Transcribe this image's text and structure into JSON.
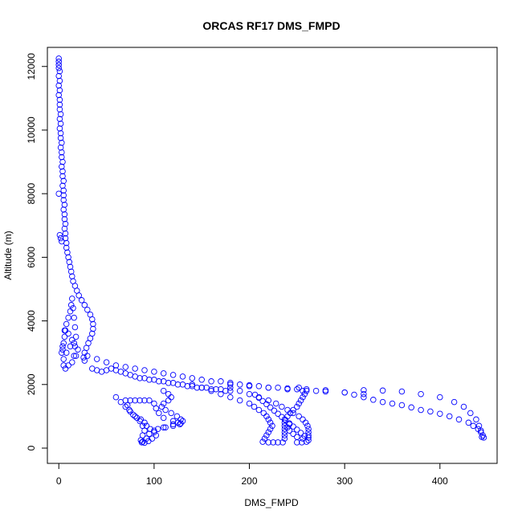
{
  "chart_data": {
    "type": "scatter",
    "title": "ORCAS RF17 DMS_FMPD",
    "xlabel": "DMS_FMPD",
    "ylabel": "Altitude (m)",
    "xlim": [
      -12,
      460
    ],
    "ylim": [
      -480,
      12600
    ],
    "x_ticks": [
      0,
      100,
      200,
      300,
      400
    ],
    "y_ticks": [
      0,
      2000,
      4000,
      6000,
      8000,
      10000,
      12000
    ],
    "grid": false,
    "marker": "open-circle",
    "color": "#0000ff",
    "series": [
      {
        "points": [
          [
            0,
            12250
          ],
          [
            0,
            12150
          ],
          [
            0,
            12050
          ],
          [
            0,
            11950
          ],
          [
            1,
            11850
          ],
          [
            0,
            11700
          ],
          [
            1,
            11550
          ],
          [
            0,
            11400
          ],
          [
            1,
            11250
          ],
          [
            0,
            11100
          ],
          [
            1,
            10950
          ],
          [
            1,
            10800
          ],
          [
            1,
            10650
          ],
          [
            2,
            10500
          ],
          [
            1,
            10350
          ],
          [
            2,
            10200
          ],
          [
            1,
            10050
          ],
          [
            2,
            9900
          ],
          [
            2,
            9750
          ],
          [
            3,
            9600
          ],
          [
            2,
            9450
          ],
          [
            3,
            9300
          ],
          [
            3,
            9150
          ],
          [
            4,
            9000
          ],
          [
            3,
            8850
          ],
          [
            4,
            8700
          ],
          [
            4,
            8550
          ],
          [
            5,
            8400
          ],
          [
            4,
            8250
          ],
          [
            5,
            8100
          ],
          [
            0,
            8000
          ],
          [
            5,
            7950
          ],
          [
            5,
            7800
          ],
          [
            6,
            7650
          ],
          [
            5,
            7500
          ],
          [
            6,
            7350
          ],
          [
            6,
            7200
          ],
          [
            7,
            7050
          ],
          [
            6,
            6900
          ],
          [
            7,
            6750
          ],
          [
            1,
            6700
          ],
          [
            2,
            6600
          ],
          [
            7,
            6600
          ],
          [
            8,
            6450
          ],
          [
            3,
            6500
          ],
          [
            8,
            6300
          ],
          [
            9,
            6150
          ],
          [
            10,
            6000
          ],
          [
            11,
            5850
          ],
          [
            12,
            5700
          ],
          [
            13,
            5550
          ],
          [
            14,
            5400
          ],
          [
            15,
            5250
          ],
          [
            17,
            5100
          ],
          [
            19,
            4950
          ],
          [
            21,
            4800
          ],
          [
            24,
            4650
          ],
          [
            27,
            4500
          ],
          [
            30,
            4350
          ],
          [
            33,
            4200
          ],
          [
            35,
            4050
          ],
          [
            36,
            3900
          ],
          [
            36,
            3750
          ],
          [
            35,
            3600
          ],
          [
            33,
            3450
          ],
          [
            31,
            3300
          ],
          [
            29,
            3150
          ],
          [
            27,
            3000
          ],
          [
            26,
            2850
          ],
          [
            27,
            2750
          ],
          [
            3,
            3000
          ],
          [
            4,
            3100
          ],
          [
            5,
            3300
          ],
          [
            6,
            3500
          ],
          [
            7,
            3700
          ],
          [
            8,
            3900
          ],
          [
            10,
            4100
          ],
          [
            12,
            4300
          ],
          [
            13,
            4500
          ],
          [
            14,
            4700
          ],
          [
            15,
            4400
          ],
          [
            16,
            4100
          ],
          [
            17,
            3800
          ],
          [
            18,
            3500
          ],
          [
            17,
            3200
          ],
          [
            16,
            2900
          ],
          [
            14,
            2700
          ],
          [
            10,
            2600
          ],
          [
            7,
            2500
          ],
          [
            5,
            2800
          ],
          [
            8,
            3000
          ],
          [
            12,
            3200
          ],
          [
            16,
            3300
          ],
          [
            20,
            3100
          ],
          [
            18,
            2900
          ],
          [
            14,
            3400
          ],
          [
            10,
            3600
          ],
          [
            6,
            3700
          ],
          [
            4,
            3200
          ],
          [
            5,
            2600
          ],
          [
            35,
            2500
          ],
          [
            40,
            2450
          ],
          [
            45,
            2400
          ],
          [
            50,
            2450
          ],
          [
            55,
            2500
          ],
          [
            60,
            2450
          ],
          [
            65,
            2400
          ],
          [
            70,
            2350
          ],
          [
            75,
            2300
          ],
          [
            80,
            2250
          ],
          [
            85,
            2200
          ],
          [
            90,
            2200
          ],
          [
            95,
            2150
          ],
          [
            100,
            2150
          ],
          [
            105,
            2100
          ],
          [
            110,
            2100
          ],
          [
            115,
            2050
          ],
          [
            120,
            2050
          ],
          [
            125,
            2000
          ],
          [
            130,
            2000
          ],
          [
            135,
            1950
          ],
          [
            140,
            1950
          ],
          [
            145,
            1900
          ],
          [
            150,
            1900
          ],
          [
            155,
            1900
          ],
          [
            160,
            1850
          ],
          [
            165,
            1850
          ],
          [
            170,
            1850
          ],
          [
            175,
            1800
          ],
          [
            180,
            1800
          ],
          [
            30,
            2900
          ],
          [
            40,
            2800
          ],
          [
            50,
            2700
          ],
          [
            60,
            2600
          ],
          [
            70,
            2550
          ],
          [
            80,
            2500
          ],
          [
            90,
            2450
          ],
          [
            100,
            2400
          ],
          [
            110,
            2350
          ],
          [
            120,
            2300
          ],
          [
            130,
            2250
          ],
          [
            140,
            2200
          ],
          [
            150,
            2150
          ],
          [
            160,
            2100
          ],
          [
            170,
            2100
          ],
          [
            180,
            2050
          ],
          [
            190,
            2000
          ],
          [
            200,
            1950
          ],
          [
            210,
            1950
          ],
          [
            220,
            1900
          ],
          [
            230,
            1900
          ],
          [
            240,
            1850
          ],
          [
            250,
            1850
          ],
          [
            260,
            1800
          ],
          [
            270,
            1800
          ],
          [
            280,
            1780
          ],
          [
            300,
            1750
          ],
          [
            320,
            1700
          ],
          [
            180,
            2000
          ],
          [
            200,
            1980
          ],
          [
            220,
            1900
          ],
          [
            240,
            1880
          ],
          [
            260,
            1850
          ],
          [
            280,
            1820
          ],
          [
            300,
            1750
          ],
          [
            310,
            1680
          ],
          [
            320,
            1600
          ],
          [
            330,
            1520
          ],
          [
            340,
            1450
          ],
          [
            350,
            1400
          ],
          [
            360,
            1350
          ],
          [
            370,
            1280
          ],
          [
            380,
            1200
          ],
          [
            390,
            1150
          ],
          [
            400,
            1080
          ],
          [
            410,
            1000
          ],
          [
            420,
            900
          ],
          [
            430,
            800
          ],
          [
            435,
            700
          ],
          [
            440,
            600
          ],
          [
            443,
            500
          ],
          [
            445,
            400
          ],
          [
            444,
            350
          ],
          [
            446,
            330
          ],
          [
            320,
            1820
          ],
          [
            340,
            1810
          ],
          [
            360,
            1780
          ],
          [
            380,
            1700
          ],
          [
            400,
            1600
          ],
          [
            415,
            1450
          ],
          [
            425,
            1300
          ],
          [
            432,
            1100
          ],
          [
            438,
            900
          ],
          [
            441,
            700
          ],
          [
            443,
            550
          ],
          [
            60,
            1600
          ],
          [
            65,
            1450
          ],
          [
            70,
            1300
          ],
          [
            75,
            1150
          ],
          [
            80,
            1000
          ],
          [
            85,
            850
          ],
          [
            88,
            700
          ],
          [
            90,
            550
          ],
          [
            88,
            400
          ],
          [
            86,
            250
          ],
          [
            87,
            180
          ],
          [
            90,
            170
          ],
          [
            88,
            200
          ],
          [
            92,
            300
          ],
          [
            95,
            450
          ],
          [
            100,
            550
          ],
          [
            110,
            650
          ],
          [
            120,
            750
          ],
          [
            125,
            800
          ],
          [
            128,
            780
          ],
          [
            120,
            850
          ],
          [
            110,
            950
          ],
          [
            105,
            1100
          ],
          [
            102,
            1250
          ],
          [
            100,
            1400
          ],
          [
            95,
            1500
          ],
          [
            90,
            1500
          ],
          [
            85,
            1500
          ],
          [
            80,
            1500
          ],
          [
            75,
            1500
          ],
          [
            70,
            1500
          ],
          [
            72,
            1350
          ],
          [
            74,
            1200
          ],
          [
            78,
            1050
          ],
          [
            82,
            950
          ],
          [
            86,
            900
          ],
          [
            90,
            800
          ],
          [
            92,
            700
          ],
          [
            96,
            600
          ],
          [
            100,
            500
          ],
          [
            102,
            400
          ],
          [
            98,
            300
          ],
          [
            94,
            220
          ],
          [
            110,
            1800
          ],
          [
            115,
            1700
          ],
          [
            118,
            1600
          ],
          [
            115,
            1500
          ],
          [
            110,
            1400
          ],
          [
            108,
            1300
          ],
          [
            112,
            1200
          ],
          [
            118,
            1100
          ],
          [
            124,
            1000
          ],
          [
            128,
            900
          ],
          [
            130,
            850
          ],
          [
            127,
            750
          ],
          [
            120,
            700
          ],
          [
            112,
            650
          ],
          [
            104,
            600
          ],
          [
            140,
            2000
          ],
          [
            150,
            1900
          ],
          [
            160,
            1800
          ],
          [
            170,
            1700
          ],
          [
            180,
            1600
          ],
          [
            190,
            1500
          ],
          [
            200,
            1400
          ],
          [
            205,
            1300
          ],
          [
            210,
            1200
          ],
          [
            215,
            1100
          ],
          [
            218,
            1000
          ],
          [
            220,
            900
          ],
          [
            222,
            800
          ],
          [
            224,
            700
          ],
          [
            222,
            600
          ],
          [
            220,
            500
          ],
          [
            218,
            400
          ],
          [
            216,
            300
          ],
          [
            214,
            200
          ],
          [
            220,
            180
          ],
          [
            225,
            180
          ],
          [
            230,
            180
          ],
          [
            235,
            180
          ],
          [
            237,
            300
          ],
          [
            237,
            400
          ],
          [
            237,
            500
          ],
          [
            237,
            600
          ],
          [
            237,
            700
          ],
          [
            237,
            800
          ],
          [
            237,
            900
          ],
          [
            240,
            1000
          ],
          [
            243,
            1100
          ],
          [
            246,
            1200
          ],
          [
            250,
            1300
          ],
          [
            252,
            1400
          ],
          [
            254,
            1500
          ],
          [
            256,
            1600
          ],
          [
            258,
            1700
          ],
          [
            256,
            1800
          ],
          [
            252,
            1900
          ],
          [
            180,
            1900
          ],
          [
            190,
            1800
          ],
          [
            200,
            1700
          ],
          [
            210,
            1600
          ],
          [
            220,
            1500
          ],
          [
            228,
            1400
          ],
          [
            234,
            1300
          ],
          [
            240,
            1200
          ],
          [
            246,
            1100
          ],
          [
            252,
            1000
          ],
          [
            256,
            900
          ],
          [
            259,
            800
          ],
          [
            261,
            700
          ],
          [
            262,
            600
          ],
          [
            262,
            500
          ],
          [
            262,
            400
          ],
          [
            262,
            330
          ],
          [
            258,
            380
          ],
          [
            254,
            480
          ],
          [
            250,
            580
          ],
          [
            246,
            680
          ],
          [
            242,
            780
          ],
          [
            238,
            880
          ],
          [
            234,
            980
          ],
          [
            230,
            1080
          ],
          [
            226,
            1180
          ],
          [
            222,
            1280
          ],
          [
            218,
            1380
          ],
          [
            214,
            1480
          ],
          [
            210,
            1580
          ],
          [
            206,
            1680
          ],
          [
            250,
            180
          ],
          [
            255,
            180
          ],
          [
            260,
            200
          ],
          [
            262,
            250
          ],
          [
            256,
            300
          ],
          [
            250,
            350
          ],
          [
            246,
            450
          ],
          [
            242,
            550
          ],
          [
            240,
            650
          ],
          [
            242,
            750
          ]
        ]
      }
    ]
  }
}
